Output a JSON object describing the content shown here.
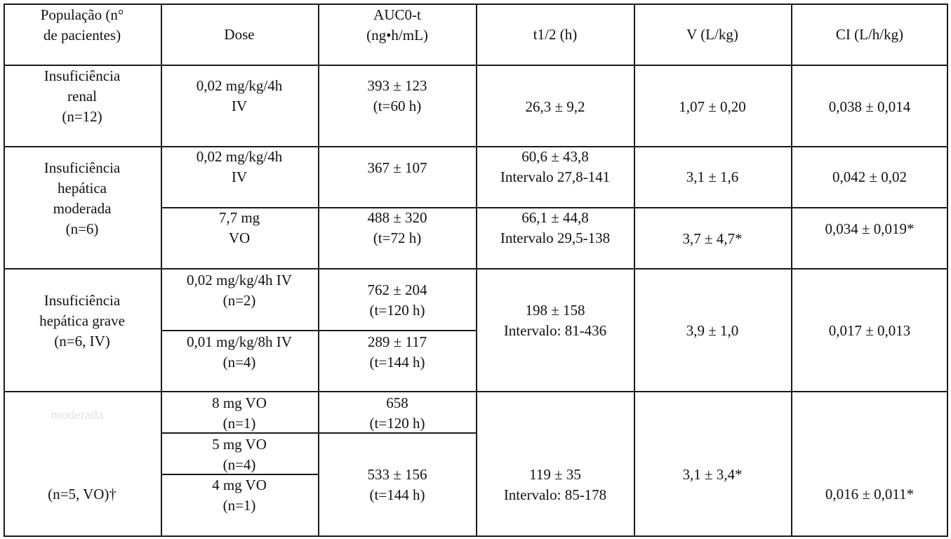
{
  "header": {
    "populacao": [
      "População (n°",
      "de pacientes)"
    ],
    "dose": [
      "Dose"
    ],
    "auc": [
      "AUC0-t",
      "(ng•h/mL)"
    ],
    "t12": [
      "t1/2 (h)"
    ],
    "v": [
      "V (L/kg)"
    ],
    "cl": [
      "CI (L/h/kg)"
    ]
  },
  "rows": {
    "renal": {
      "pop": [
        "Insuficiência",
        "renal",
        "(n=12)"
      ],
      "dose": [
        "0,02 mg/kg/4h",
        "IV"
      ],
      "auc": [
        "393 ± 123",
        "(t=60 h)"
      ],
      "t12": [
        "26,3 ± 9,2"
      ],
      "v": [
        "1,07 ± 0,20"
      ],
      "cl": [
        "0,038 ± 0,014"
      ]
    },
    "moderada": {
      "pop": [
        "Insuficiência",
        "hepática",
        "moderada",
        "(n=6)"
      ],
      "iv": {
        "dose": [
          "0,02 mg/kg/4h",
          "IV"
        ],
        "auc": [
          "367 ± 107"
        ],
        "t12": [
          "60,6 ± 43,8",
          "Intervalo 27,8-141"
        ],
        "v": [
          "3,1 ± 1,6"
        ],
        "cl": [
          "0,042 ± 0,02"
        ]
      },
      "vo": {
        "dose": [
          "7,7 mg",
          "VO"
        ],
        "auc": [
          "488 ± 320",
          "(t=72 h)"
        ],
        "t12": [
          "66,1 ± 44,8",
          "Intervalo 29,5-138"
        ],
        "v": [
          "3,7 ± 4,7*"
        ],
        "cl": [
          "0,034 ± 0,019*"
        ]
      }
    },
    "grave_iv": {
      "pop": [
        "Insuficiência",
        "hepática grave",
        "(n=6, IV)"
      ],
      "dose1": [
        "0,02 mg/kg/4h IV",
        "(n=2)"
      ],
      "auc1": [
        "762 ± 204",
        "(t=120 h)"
      ],
      "dose2": [
        "0,01 mg/kg/8h IV",
        "(n=4)"
      ],
      "auc2": [
        "289 ± 117",
        "(t=144 h)"
      ],
      "t12": [
        "198 ± 158",
        "Intervalo: 81-436"
      ],
      "v": [
        "3,9 ± 1,0"
      ],
      "cl": [
        "0,017 ± 0,013"
      ]
    },
    "grave_vo": {
      "pop": [
        "(n=5, VO)†"
      ],
      "dose1": [
        "8 mg VO",
        "(n=1)"
      ],
      "auc1": [
        "658",
        "(t=120 h)"
      ],
      "dose2": [
        "5 mg VO",
        "(n=4)"
      ],
      "dose3": [
        "4 mg VO",
        "(n=1)"
      ],
      "auc2": [
        "533 ± 156",
        "(t=144 h)"
      ],
      "t12": [
        "119 ± 35",
        "Intervalo: 85-178"
      ],
      "v": [
        "3,1 ± 3,4*"
      ],
      "cl": [
        "0,016 ± 0,011*"
      ]
    }
  }
}
